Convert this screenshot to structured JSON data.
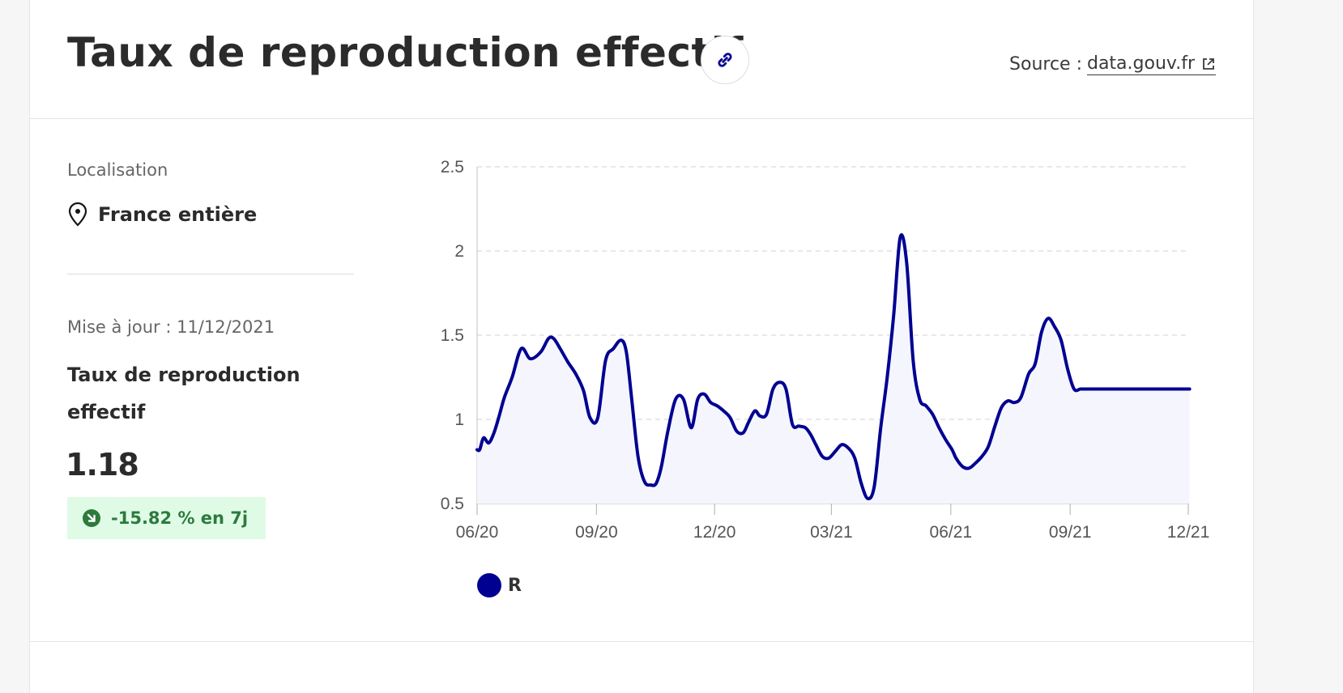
{
  "header": {
    "title": "Taux de reproduction effectif",
    "source_prefix": "Source :",
    "source_link": "data.gouv.fr"
  },
  "left": {
    "location_label": "Localisation",
    "location_value": "France entière",
    "update_text": "Mise à jour : 11/12/2021",
    "indicator_name": "Taux de reproduction effectif",
    "indicator_value": "1.18",
    "change_text": "-15.82 % en 7j"
  },
  "colors": {
    "line": "#000091",
    "area_fill": "#f5f5fe",
    "badge_bg": "#dffbe6",
    "badge_text": "#2d7a3d"
  },
  "icons": {
    "link": "link-icon",
    "external": "external-link-icon",
    "location": "location-pin-icon",
    "trend": "arrow-down-right-circle-icon"
  },
  "chart_data": {
    "type": "area",
    "title": "",
    "xlabel": "",
    "ylabel": "",
    "ylim": [
      0.5,
      2.5
    ],
    "yticks": [
      "0.5",
      "1",
      "1.5",
      "2",
      "2.5"
    ],
    "xticks": [
      "06/20",
      "09/20",
      "12/20",
      "03/21",
      "06/21",
      "09/21",
      "12/21"
    ],
    "grid": true,
    "legend": "bottom-left",
    "series": [
      {
        "name": "R",
        "x": [
          "2020-06-01",
          "2020-06-03",
          "2020-06-06",
          "2020-06-10",
          "2020-06-14",
          "2020-06-18",
          "2020-06-22",
          "2020-06-28",
          "2020-07-05",
          "2020-07-12",
          "2020-07-20",
          "2020-07-26",
          "2020-07-30",
          "2020-08-04",
          "2020-08-10",
          "2020-08-16",
          "2020-08-22",
          "2020-08-27",
          "2020-09-02",
          "2020-09-08",
          "2020-09-14",
          "2020-09-20",
          "2020-09-24",
          "2020-09-28",
          "2020-10-03",
          "2020-10-08",
          "2020-10-13",
          "2020-10-17",
          "2020-10-21",
          "2020-10-26",
          "2020-11-01",
          "2020-11-07",
          "2020-11-13",
          "2020-11-18",
          "2020-11-23",
          "2020-11-28",
          "2020-12-03",
          "2020-12-08",
          "2020-12-13",
          "2020-12-18",
          "2020-12-23",
          "2020-12-27",
          "2021-01-01",
          "2021-01-05",
          "2021-01-10",
          "2021-01-15",
          "2021-01-20",
          "2021-01-25",
          "2021-01-30",
          "2021-02-04",
          "2021-02-09",
          "2021-02-13",
          "2021-02-17",
          "2021-02-22",
          "2021-02-27",
          "2021-03-04",
          "2021-03-09",
          "2021-03-14",
          "2021-03-19",
          "2021-03-24",
          "2021-03-29",
          "2021-04-03",
          "2021-04-08",
          "2021-04-13",
          "2021-04-18",
          "2021-04-23",
          "2021-04-28",
          "2021-05-03",
          "2021-05-08",
          "2021-05-13",
          "2021-05-18",
          "2021-05-23",
          "2021-05-28",
          "2021-06-02",
          "2021-06-05",
          "2021-06-10",
          "2021-06-15",
          "2021-06-20",
          "2021-06-25",
          "2021-06-30",
          "2021-07-05",
          "2021-07-10",
          "2021-07-15",
          "2021-07-20",
          "2021-07-25",
          "2021-07-31",
          "2021-08-05",
          "2021-08-10",
          "2021-08-15",
          "2021-08-20",
          "2021-08-25",
          "2021-08-30",
          "2021-09-04",
          "2021-09-09",
          "2021-09-14",
          "2021-09-19",
          "2021-09-24",
          "2021-09-29",
          "2021-10-04",
          "2021-10-09",
          "2021-10-14",
          "2021-10-19",
          "2021-10-24",
          "2021-10-29",
          "2021-11-03",
          "2021-11-08",
          "2021-11-13",
          "2021-11-18",
          "2021-11-23",
          "2021-11-28",
          "2021-12-02"
        ],
        "y": [
          0.82,
          0.82,
          0.89,
          0.86,
          0.92,
          1.02,
          1.13,
          1.25,
          1.42,
          1.36,
          1.4,
          1.48,
          1.48,
          1.42,
          1.34,
          1.27,
          1.17,
          1.01,
          1.01,
          1.35,
          1.42,
          1.47,
          1.4,
          1.13,
          0.78,
          0.63,
          0.61,
          0.62,
          0.72,
          0.93,
          1.12,
          1.12,
          0.95,
          1.12,
          1.15,
          1.1,
          1.08,
          1.05,
          1.01,
          0.93,
          0.92,
          0.98,
          1.05,
          1.02,
          1.03,
          1.18,
          1.22,
          1.18,
          0.97,
          0.96,
          0.95,
          0.91,
          0.85,
          0.78,
          0.77,
          0.81,
          0.85,
          0.83,
          0.77,
          0.62,
          0.53,
          0.6,
          0.95,
          1.25,
          1.62,
          2.08,
          1.93,
          1.35,
          1.12,
          1.08,
          1.03,
          0.95,
          0.88,
          0.82,
          0.77,
          0.72,
          0.71,
          0.74,
          0.78,
          0.84,
          0.96,
          1.07,
          1.11,
          1.1,
          1.13,
          1.27,
          1.33,
          1.52,
          1.6,
          1.55,
          1.47,
          1.3,
          1.18,
          1.18,
          1.18,
          1.18,
          1.18,
          1.18,
          1.18,
          1.18,
          1.18,
          1.18,
          1.18,
          1.18,
          1.18,
          1.18,
          1.18,
          1.18,
          1.18,
          1.18,
          1.18
        ]
      }
    ]
  }
}
